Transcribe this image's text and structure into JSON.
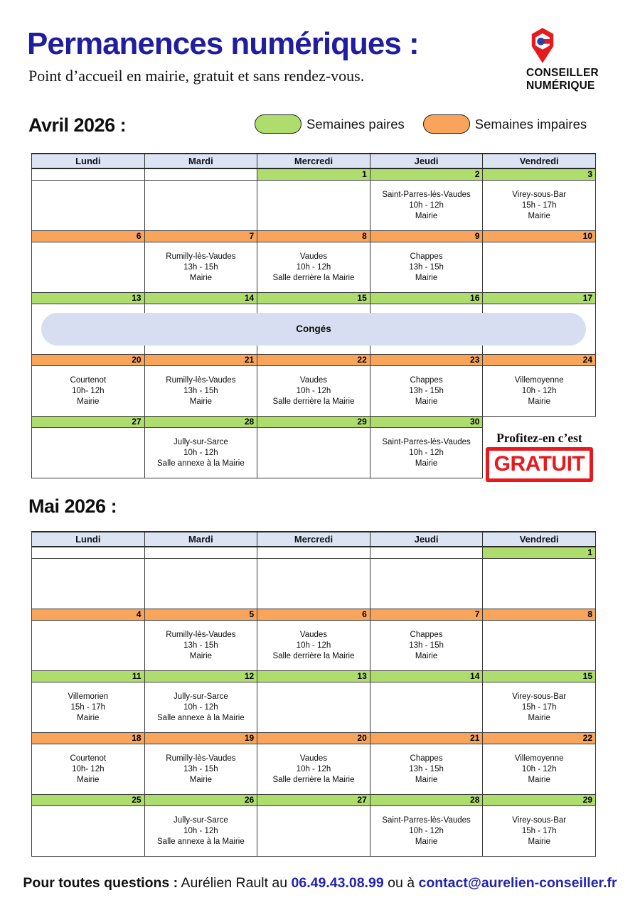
{
  "header": {
    "title": "Permanences numériques :",
    "subtitle": "Point d’accueil en mairie, gratuit et sans rendez-vous.",
    "logo": {
      "line1": "CONSEILLER",
      "line2": "NUMÉRIQUE"
    }
  },
  "legend": {
    "even": {
      "label": "Semaines paires",
      "color": "#aedd6e"
    },
    "odd": {
      "label": "Semaines impaires",
      "color": "#f8a55b"
    }
  },
  "promo": {
    "line": "Profitez-en c’est",
    "stamp": "GRATUIT"
  },
  "footer": {
    "prefix": "Pour toutes questions :",
    "text1": "Aurélien Rault au",
    "phone": "06.49.43.08.99",
    "text2": "ou à",
    "email": "contact@aurelien-conseiller.fr"
  },
  "colors": {
    "title_blue": "#211d9f",
    "even_green": "#aedd6e",
    "odd_orange": "#f8a55b",
    "header_lavender": "#dce3f2",
    "banner_blue": "#d8def1",
    "stamp_red": "#e8191d",
    "link_blue": "#2424b0"
  },
  "calendars": [
    {
      "id": "april",
      "title": "Avril 2026 :",
      "day_headers": [
        "Lundi",
        "Mardi",
        "Mercredi",
        "Jeudi",
        "Vendredi"
      ],
      "weeks": [
        {
          "parity": "even",
          "dates": [
            "",
            "",
            "1",
            "2",
            "3"
          ],
          "events": [
            null,
            null,
            null,
            {
              "place": "Saint-Parres-lès-Vaudes",
              "time": "10h - 12h",
              "venue": "Mairie"
            },
            {
              "place": "Virey-sous-Bar",
              "time": "15h - 17h",
              "venue": "Mairie"
            }
          ]
        },
        {
          "parity": "odd",
          "dates": [
            "6",
            "7",
            "8",
            "9",
            "10"
          ],
          "events": [
            null,
            {
              "place": "Rumilly-lès-Vaudes",
              "time": "13h - 15h",
              "venue": "Mairie"
            },
            {
              "place": "Vaudes",
              "time": "10h - 12h",
              "venue": "Salle derrière la Mairie"
            },
            {
              "place": "Chappes",
              "time": "13h - 15h",
              "venue": "Mairie"
            },
            null
          ]
        },
        {
          "parity": "even",
          "dates": [
            "13",
            "14",
            "15",
            "16",
            "17"
          ],
          "banner": "Congés"
        },
        {
          "parity": "odd",
          "dates": [
            "20",
            "21",
            "22",
            "23",
            "24"
          ],
          "events": [
            {
              "place": "Courtenot",
              "time": "10h- 12h",
              "venue": "Mairie"
            },
            {
              "place": "Rumilly-lès-Vaudes",
              "time": "13h - 15h",
              "venue": "Mairie"
            },
            {
              "place": "Vaudes",
              "time": "10h - 12h",
              "venue": "Salle derrière la Mairie"
            },
            {
              "place": "Chappes",
              "time": "13h - 15h",
              "venue": "Mairie"
            },
            {
              "place": "Villemoyenne",
              "time": "10h - 12h",
              "venue": "Mairie"
            }
          ]
        },
        {
          "parity": "even",
          "dates": [
            "27",
            "28",
            "29",
            "30"
          ],
          "cols": 4,
          "promo": true,
          "events": [
            null,
            {
              "place": "Jully-sur-Sarce",
              "time": "10h - 12h",
              "venue": "Salle annexe à la Mairie"
            },
            null,
            {
              "place": "Saint-Parres-lès-Vaudes",
              "time": "10h - 12h",
              "venue": "Mairie"
            }
          ]
        }
      ]
    },
    {
      "id": "may",
      "title": "Mai 2026 :",
      "day_headers": [
        "Lundi",
        "Mardi",
        "Mercredi",
        "Jeudi",
        "Vendredi"
      ],
      "weeks": [
        {
          "parity": "even",
          "dates": [
            "",
            "",
            "",
            "",
            "1"
          ],
          "events": [
            null,
            null,
            null,
            null,
            null
          ]
        },
        {
          "parity": "odd",
          "dates": [
            "4",
            "5",
            "6",
            "7",
            "8"
          ],
          "events": [
            null,
            {
              "place": "Rumilly-lès-Vaudes",
              "time": "13h - 15h",
              "venue": "Mairie"
            },
            {
              "place": "Vaudes",
              "time": "10h - 12h",
              "venue": "Salle derrière la Mairie"
            },
            {
              "place": "Chappes",
              "time": "13h - 15h",
              "venue": "Mairie"
            },
            null
          ]
        },
        {
          "parity": "even",
          "dates": [
            "11",
            "12",
            "13",
            "14",
            "15"
          ],
          "events": [
            {
              "place": "Villemorien",
              "time": "15h - 17h",
              "venue": "Mairie"
            },
            {
              "place": "Jully-sur-Sarce",
              "time": "10h - 12h",
              "venue": "Salle annexe à la Mairie"
            },
            null,
            null,
            {
              "place": "Virey-sous-Bar",
              "time": "15h - 17h",
              "venue": "Mairie"
            }
          ]
        },
        {
          "parity": "odd",
          "dates": [
            "18",
            "19",
            "20",
            "21",
            "22"
          ],
          "events": [
            {
              "place": "Courtenot",
              "time": "10h- 12h",
              "venue": "Mairie"
            },
            {
              "place": "Rumilly-lès-Vaudes",
              "time": "13h - 15h",
              "venue": "Mairie"
            },
            {
              "place": "Vaudes",
              "time": "10h - 12h",
              "venue": "Salle derrière la Mairie"
            },
            {
              "place": "Chappes",
              "time": "13h - 15h",
              "venue": "Mairie"
            },
            {
              "place": "Villemoyenne",
              "time": "10h - 12h",
              "venue": "Mairie"
            }
          ]
        },
        {
          "parity": "even",
          "dates": [
            "25",
            "26",
            "27",
            "28",
            "29"
          ],
          "events": [
            null,
            {
              "place": "Jully-sur-Sarce",
              "time": "10h - 12h",
              "venue": "Salle annexe à la Mairie"
            },
            null,
            {
              "place": "Saint-Parres-lès-Vaudes",
              "time": "10h - 12h",
              "venue": "Mairie"
            },
            {
              "place": "Virey-sous-Bar",
              "time": "15h - 17h",
              "venue": "Mairie"
            }
          ]
        }
      ]
    }
  ]
}
